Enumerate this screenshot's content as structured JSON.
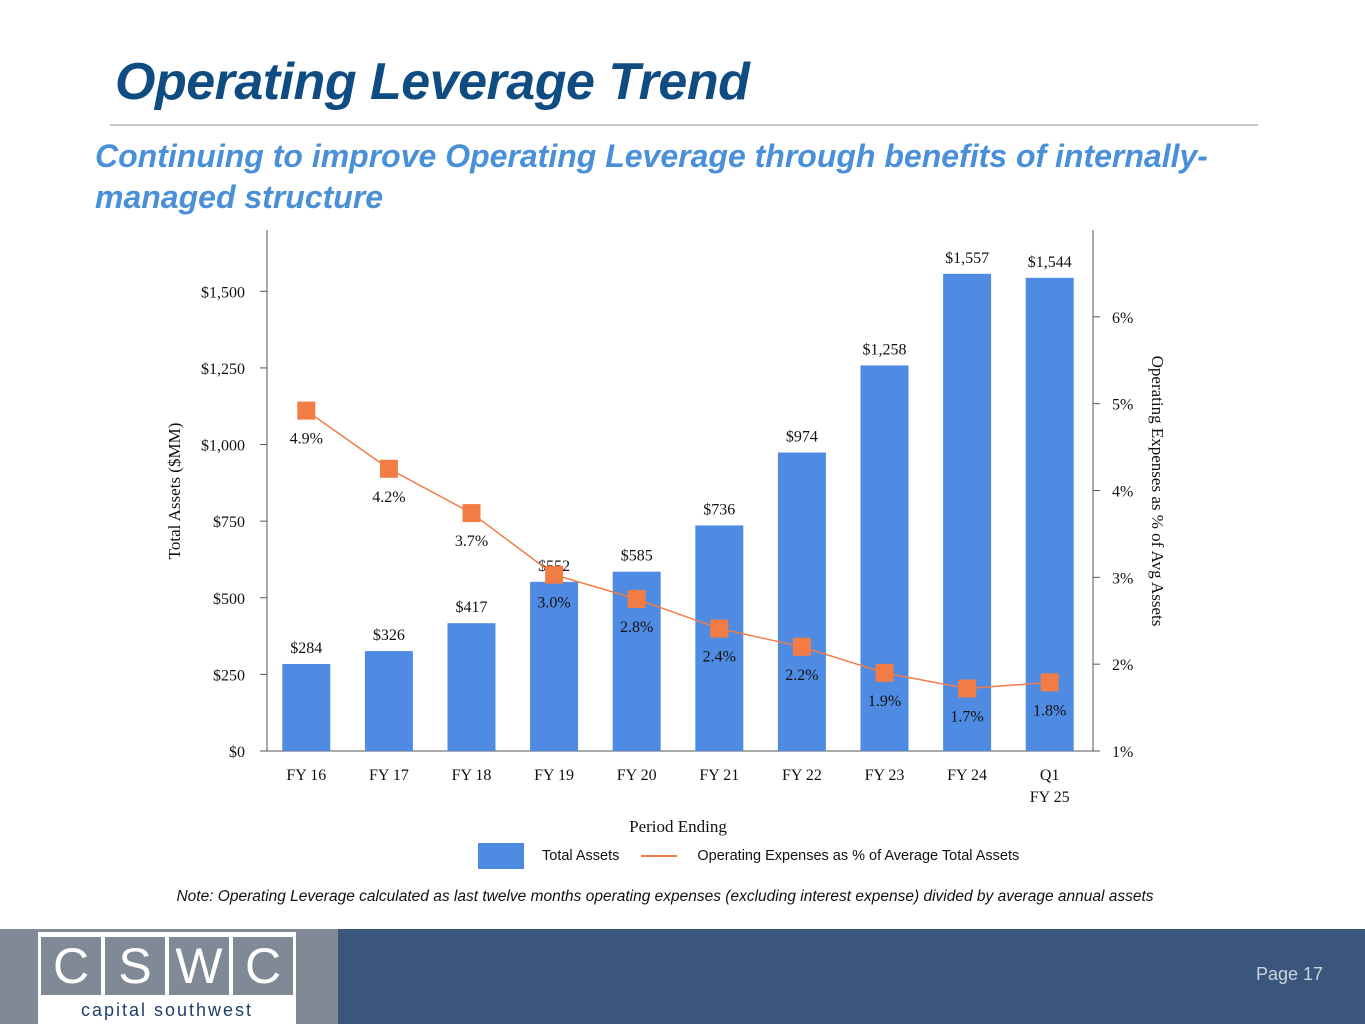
{
  "page": {
    "title": "Operating Leverage Trend",
    "subtitle": "Continuing to improve Operating Leverage through benefits of internally-managed structure",
    "note": "Note: Operating Leverage calculated as last twelve months operating expenses (excluding interest expense) divided by average annual assets",
    "page_number": "Page 17"
  },
  "logo": {
    "letters": [
      "C",
      "S",
      "W",
      "C"
    ],
    "text": "capital southwest"
  },
  "colors": {
    "title": "#0f4c81",
    "subtitle": "#4a90d9",
    "bar": "#4f8be2",
    "line": "#f27c46",
    "footer": "#3a567c",
    "logo_panel": "#7f8a96"
  },
  "legend": {
    "bar_label": "Total Assets",
    "line_label": "Operating Expenses as % of Average Total Assets"
  },
  "chart_data": {
    "type": "bar",
    "categories": [
      "FY 16",
      "FY 17",
      "FY 18",
      "FY 19",
      "FY 20",
      "FY 21",
      "FY 22",
      "FY 23",
      "FY 24",
      "Q1 FY 25"
    ],
    "series": [
      {
        "name": "Total Assets",
        "type": "bar",
        "axis": "left",
        "values": [
          284,
          326,
          417,
          552,
          585,
          736,
          974,
          1258,
          1557,
          1544
        ],
        "labels": [
          "$284",
          "$326",
          "$417",
          "$552",
          "$585",
          "$736",
          "$974",
          "$1,258",
          "$1,557",
          "$1,544"
        ]
      },
      {
        "name": "Operating Expenses as % of Average Total Assets",
        "type": "line",
        "axis": "right",
        "values": [
          4.92,
          4.25,
          3.74,
          3.03,
          2.75,
          2.41,
          2.2,
          1.9,
          1.72,
          1.79
        ],
        "labels": [
          "4.9%",
          "4.2%",
          "3.7%",
          "3.0%",
          "2.8%",
          "2.4%",
          "2.2%",
          "1.9%",
          "1.7%",
          "1.8%"
        ]
      }
    ],
    "xlabel": "Period Ending",
    "ylabel": "Total Assets ($MM)",
    "y2label": "Operating Expenses as % of Avg Assets",
    "ylim": [
      0,
      1700
    ],
    "y2lim": [
      1,
      7
    ],
    "yticks": [
      0,
      250,
      500,
      750,
      1000,
      1250,
      1500
    ],
    "yticklabels": [
      "$0",
      "$250",
      "$500",
      "$750",
      "$1,000",
      "$1,250",
      "$1,500"
    ],
    "y2ticks": [
      1,
      2,
      3,
      4,
      5,
      6
    ],
    "y2ticklabels": [
      "1%",
      "2%",
      "3%",
      "4%",
      "5%",
      "6%"
    ],
    "legend_position": "bottom",
    "grid": false
  }
}
